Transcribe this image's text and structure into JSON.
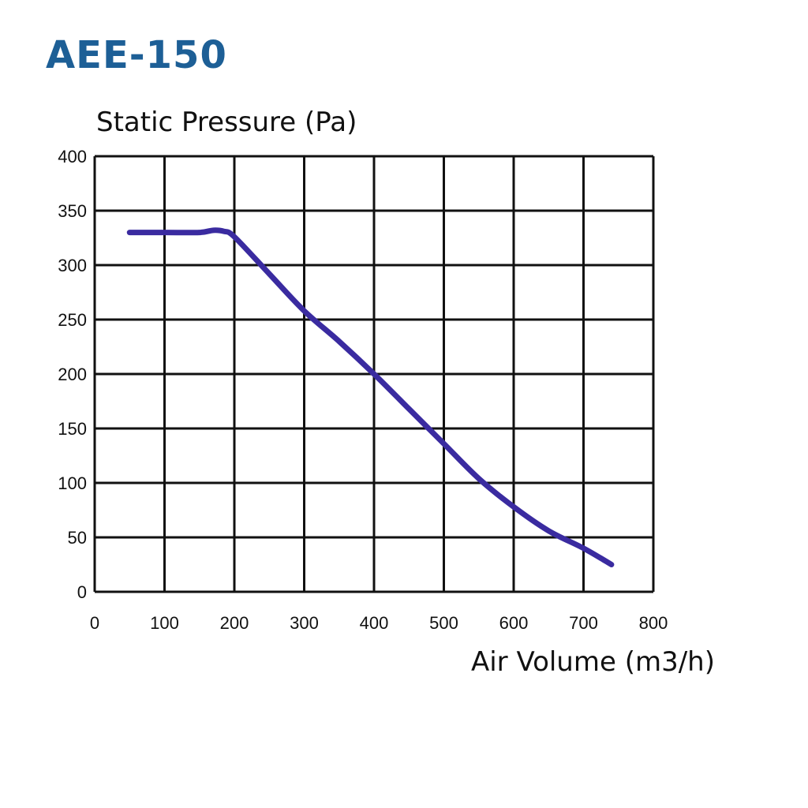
{
  "title": "AEE-150",
  "colors": {
    "title": "#1d5f96",
    "curve": "#3a2ba0",
    "grid": "#111111"
  },
  "chart_data": {
    "type": "line",
    "title": "AEE-150",
    "xlabel": "Air Volume (m3/h)",
    "ylabel": "Static Pressure (Pa)",
    "xlim": [
      0,
      800
    ],
    "ylim": [
      0,
      400
    ],
    "x_ticks": [
      0,
      100,
      200,
      300,
      400,
      500,
      600,
      700,
      800
    ],
    "y_ticks": [
      0,
      50,
      100,
      150,
      200,
      250,
      300,
      350,
      400
    ],
    "grid": true,
    "legend": "none",
    "series": [
      {
        "x": [
          50,
          100,
          150,
          170,
          185,
          200,
          250,
          300,
          350,
          400,
          450,
          500,
          550,
          600,
          650,
          700,
          740
        ],
        "y": [
          330,
          330,
          330,
          332,
          331,
          326,
          292,
          258,
          230,
          200,
          168,
          136,
          104,
          78,
          56,
          40,
          25
        ]
      }
    ]
  }
}
